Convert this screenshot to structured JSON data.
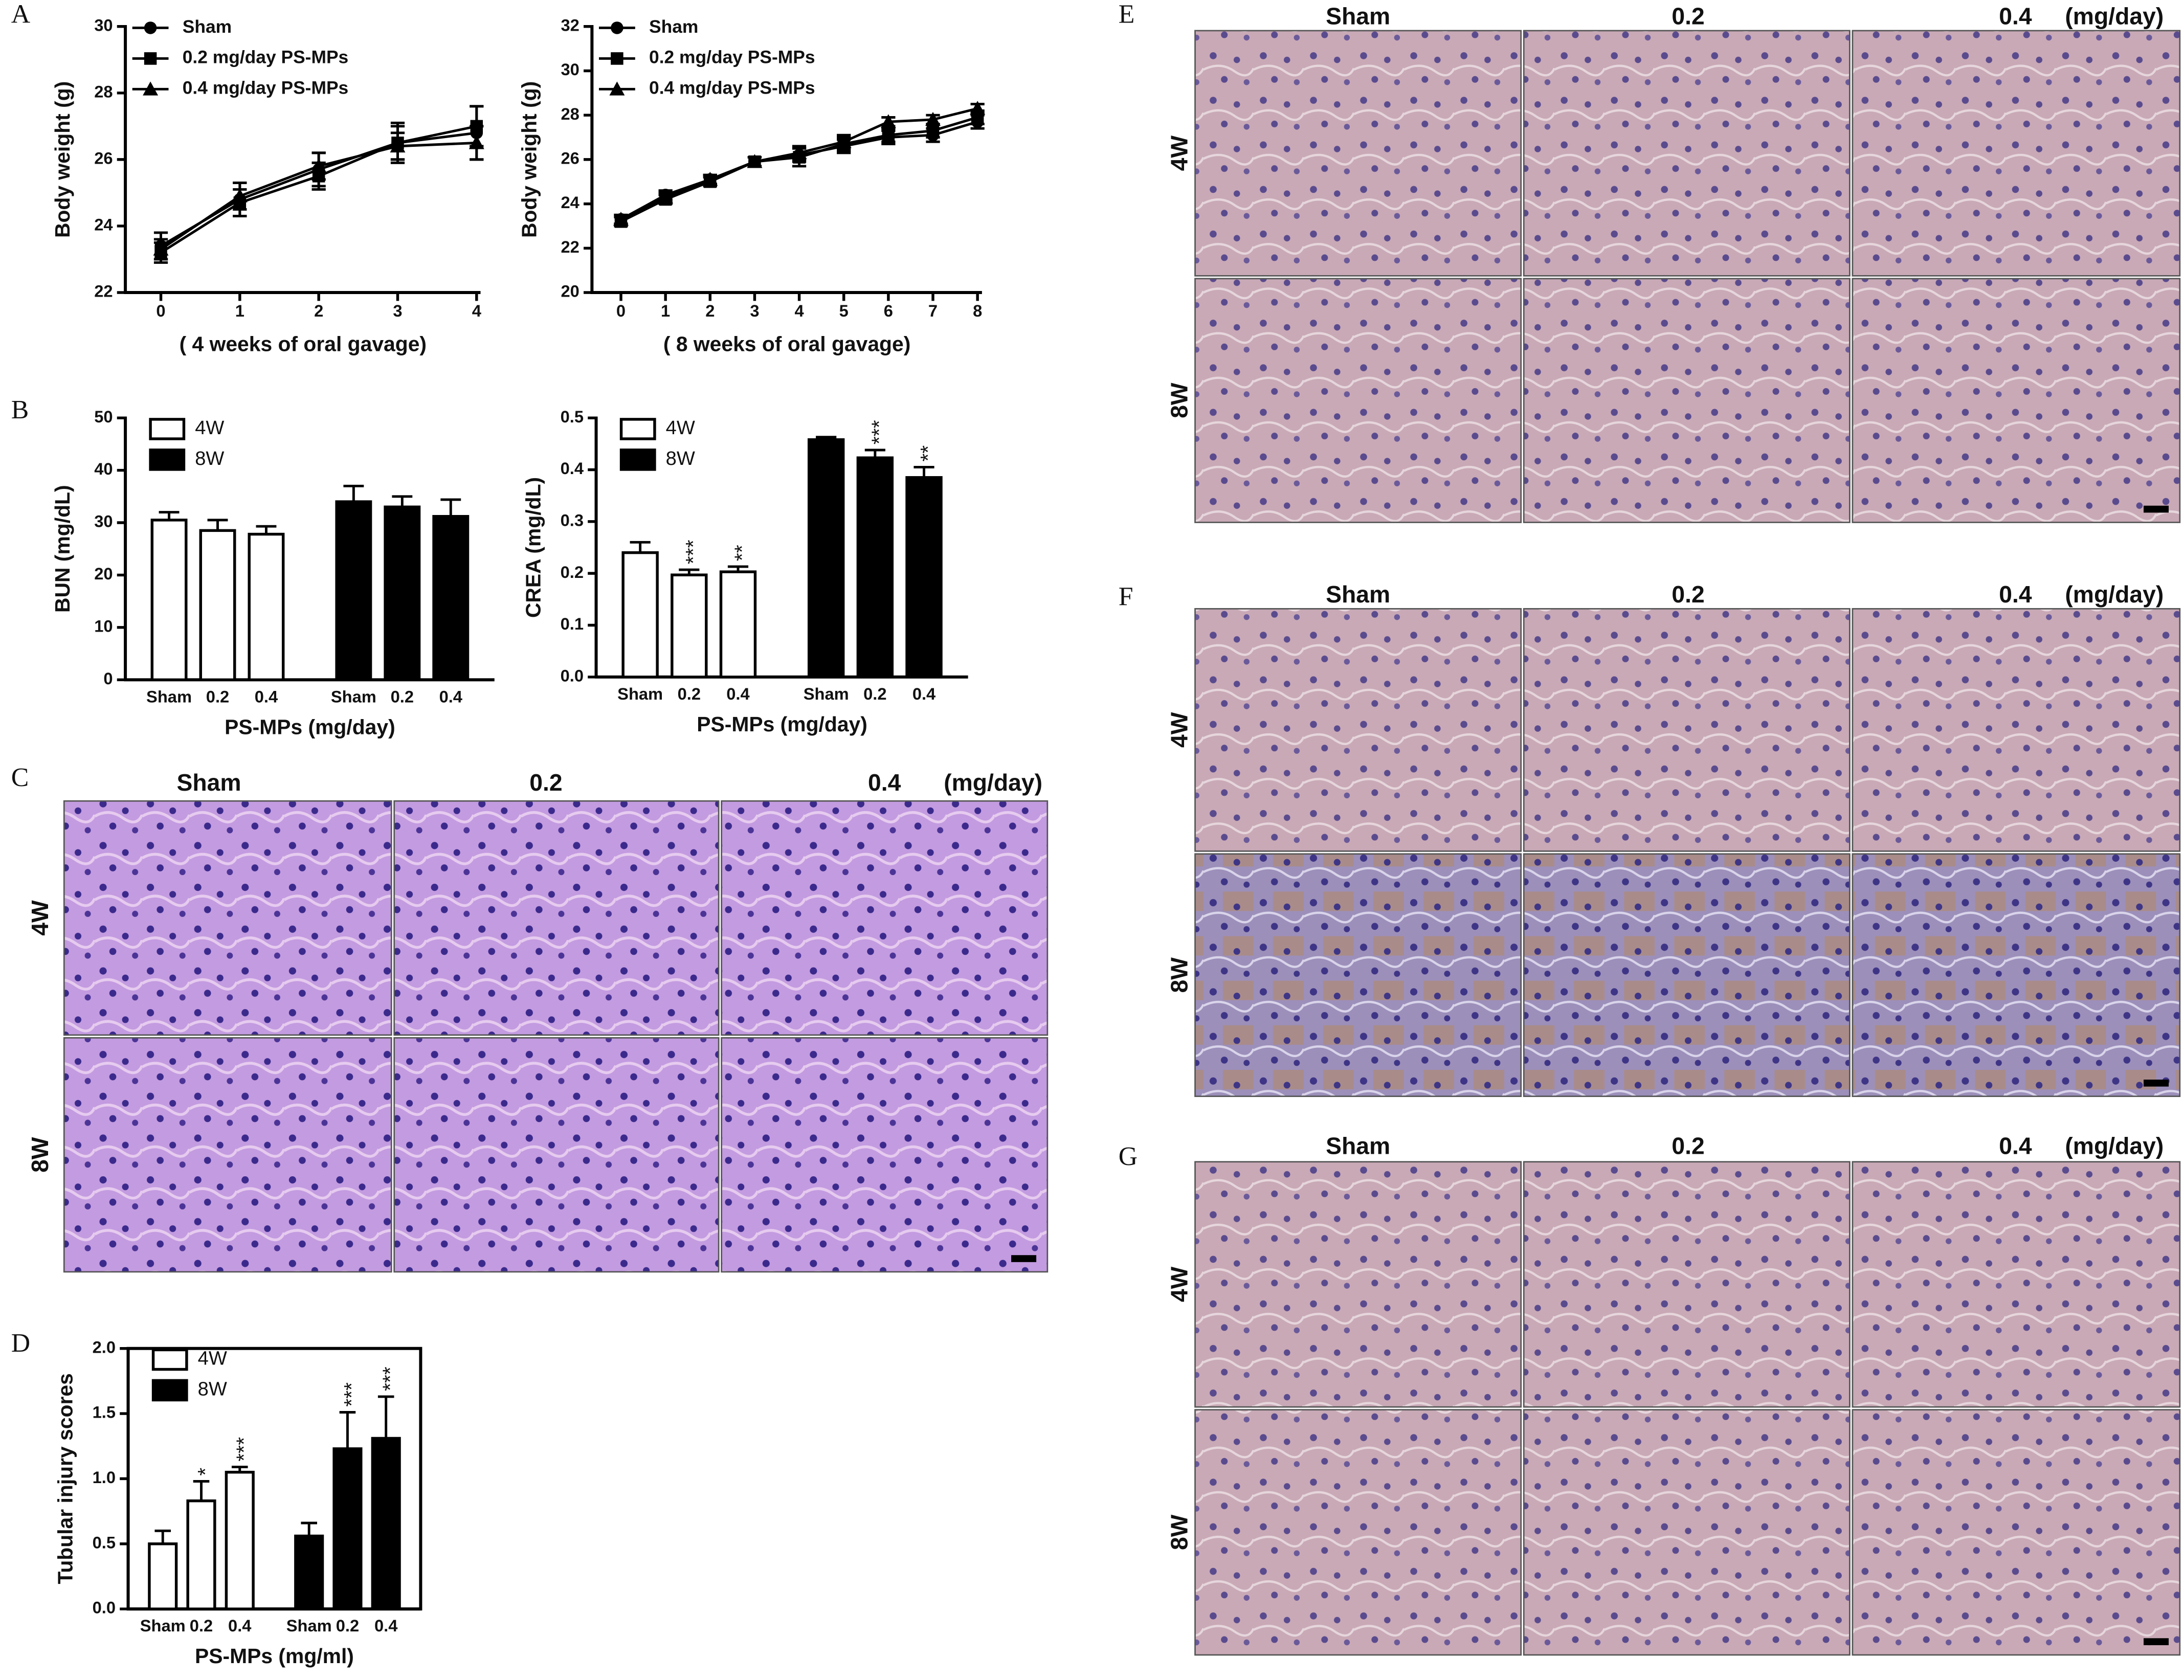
{
  "chart_data": [
    {
      "type": "line",
      "panel": "A",
      "y_label": "Body weight (g)",
      "x_label": "( 4 weeks of oral gavage)",
      "x": [
        0,
        1,
        2,
        3,
        4
      ],
      "xlim": [
        -0.45,
        4.05
      ],
      "xticks": [
        0,
        1,
        2,
        3,
        4
      ],
      "ylim": [
        22,
        30
      ],
      "yticks": [
        22,
        24,
        26,
        28,
        30
      ],
      "legend": "top-left",
      "series": [
        {
          "name": "Sham",
          "color": "#000000",
          "marker": "circle",
          "values": [
            23.4,
            24.8,
            25.7,
            26.5,
            26.8
          ],
          "errors": [
            0.4,
            0.5,
            0.5,
            0.6,
            0.8
          ]
        },
        {
          "name": "0.2 mg/day PS-MPs",
          "color": "#000000",
          "marker": "square",
          "values": [
            23.2,
            24.7,
            25.5,
            26.5,
            27.0
          ],
          "errors": [
            0.3,
            0.4,
            0.4,
            0.5,
            0.6
          ]
        },
        {
          "name": "0.4 mg/day PS-MPs",
          "color": "#000000",
          "marker": "triangle",
          "values": [
            23.3,
            24.9,
            25.8,
            26.4,
            26.5
          ],
          "errors": [
            0.3,
            0.4,
            0.4,
            0.4,
            0.5
          ]
        }
      ]
    },
    {
      "type": "line",
      "y_label": "Body weight (g)",
      "x_label": "( 8 weeks of oral gavage)",
      "x": [
        0,
        1,
        2,
        3,
        4,
        5,
        6,
        7,
        8
      ],
      "xlim": [
        -0.65,
        8.1
      ],
      "xticks": [
        0,
        1,
        2,
        3,
        4,
        5,
        6,
        7,
        8
      ],
      "ylim": [
        20,
        32
      ],
      "yticks": [
        20,
        22,
        24,
        26,
        28,
        30,
        32
      ],
      "legend": "top-left",
      "series": [
        {
          "name": "Sham",
          "color": "#000000",
          "marker": "circle",
          "values": [
            23.3,
            24.4,
            25.1,
            25.9,
            26.2,
            26.6,
            27.0,
            27.1,
            27.7
          ],
          "errors": [
            0.2,
            0.2,
            0.2,
            0.2,
            0.3,
            0.3,
            0.3,
            0.3,
            0.3
          ]
        },
        {
          "name": "0.2 mg/day PS-MPs",
          "color": "#000000",
          "marker": "square",
          "values": [
            23.2,
            24.2,
            25.0,
            25.9,
            26.1,
            26.7,
            27.1,
            27.3,
            27.9
          ],
          "errors": [
            0.2,
            0.2,
            0.2,
            0.2,
            0.4,
            0.3,
            0.3,
            0.3,
            0.3
          ]
        },
        {
          "name": "0.4 mg/day PS-MPs",
          "color": "#000000",
          "marker": "triangle",
          "values": [
            23.3,
            24.3,
            25.1,
            25.9,
            26.3,
            26.8,
            27.7,
            27.8,
            28.3
          ],
          "errors": [
            0.2,
            0.2,
            0.2,
            0.2,
            0.3,
            0.3,
            0.2,
            0.2,
            0.2
          ]
        }
      ]
    },
    {
      "type": "bar",
      "panel": "B",
      "y_label": "BUN (mg/dL)",
      "x_label": "PS-MPs (mg/day)",
      "categories": [
        "Sham",
        "0.2",
        "0.4"
      ],
      "ylim": [
        0,
        50
      ],
      "yticks": [
        0,
        10,
        20,
        30,
        40,
        50
      ],
      "legend": "top-left",
      "series": [
        {
          "name": "4W",
          "color": "#ffffff",
          "values": [
            30.5,
            28.5,
            27.8
          ],
          "errors": [
            1.5,
            2.0,
            1.5
          ]
        },
        {
          "name": "8W",
          "color": "#000000",
          "values": [
            34.0,
            33.0,
            31.2
          ],
          "errors": [
            3.0,
            2.0,
            3.2
          ]
        }
      ]
    },
    {
      "type": "bar",
      "y_label": "CREA (mg/dL)",
      "x_label": "PS-MPs (mg/day)",
      "categories": [
        "Sham",
        "0.2",
        "0.4"
      ],
      "ylim": [
        0,
        0.5
      ],
      "yticks": [
        {
          "value": 0,
          "label": "0.0"
        },
        0.1,
        0.2,
        0.3,
        0.4,
        0.5
      ],
      "legend": "top-left",
      "series": [
        {
          "name": "4W",
          "color": "#ffffff",
          "values": [
            0.24,
            0.197,
            0.203
          ],
          "errors": [
            0.02,
            0.01,
            0.01
          ],
          "significance": [
            null,
            "***",
            "**"
          ]
        },
        {
          "name": "8W",
          "color": "#000000",
          "values": [
            0.458,
            0.423,
            0.385
          ],
          "errors": [
            0.005,
            0.015,
            0.02
          ],
          "significance": [
            null,
            "***",
            "**"
          ]
        }
      ]
    },
    {
      "type": "bar",
      "panel": "D",
      "y_label": "Tubular injury scores",
      "x_label": "PS-MPs (mg/ml)",
      "frame": true,
      "categories": [
        "Sham",
        "0.2",
        "0.4"
      ],
      "ylim": [
        0,
        2.0
      ],
      "yticks": [
        {
          "value": 0,
          "label": "0.0"
        },
        0.5,
        {
          "value": 1,
          "label": "1.0"
        },
        1.5,
        {
          "value": 2,
          "label": "2.0"
        }
      ],
      "legend": "top-left",
      "series": [
        {
          "name": "4W",
          "color": "#ffffff",
          "values": [
            0.5,
            0.83,
            1.05
          ],
          "errors": [
            0.1,
            0.15,
            0.04
          ],
          "significance": [
            null,
            "*",
            "***"
          ]
        },
        {
          "name": "8W",
          "color": "#000000",
          "values": [
            0.56,
            1.23,
            1.31
          ],
          "errors": [
            0.1,
            0.28,
            0.32
          ],
          "significance": [
            null,
            "***",
            "***"
          ]
        }
      ]
    }
  ],
  "micrographs": [
    {
      "panel": "C",
      "columns": [
        "Sham",
        "0.2",
        "0.4"
      ],
      "unit": "(mg/day)",
      "rows": [
        "4W",
        "8W"
      ]
    },
    {
      "panel": "E",
      "columns": [
        "Sham",
        "0.2",
        "0.4"
      ],
      "unit": "(mg/day)",
      "rows": [
        "4W",
        "8W"
      ]
    },
    {
      "panel": "F",
      "columns": [
        "Sham",
        "0.2",
        "0.4"
      ],
      "unit": "(mg/day)",
      "rows": [
        "4W",
        "8W"
      ]
    },
    {
      "panel": "G",
      "columns": [
        "Sham",
        "0.2",
        "0.4"
      ],
      "unit": "(mg/day)",
      "rows": [
        "4W",
        "8W"
      ]
    }
  ]
}
